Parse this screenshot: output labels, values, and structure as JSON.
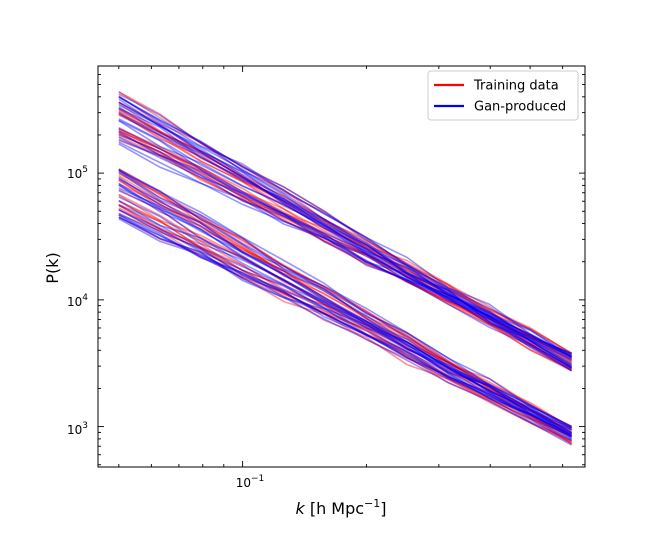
{
  "chart_data": {
    "type": "line",
    "xscale": "log",
    "yscale": "log",
    "xlim": [
      0.0445,
      0.68
    ],
    "ylim": [
      480,
      700000
    ],
    "xlabel_italic": "k",
    "xlabel_rest": " [h Mpc",
    "xlabel_sup": "−1",
    "xlabel_close": "]",
    "ylabel": "P(k)",
    "x_major_ticks": [
      {
        "value": 0.1,
        "base": "10",
        "exp": "−1"
      }
    ],
    "y_major_ticks": [
      {
        "value": 1000,
        "base": "10",
        "exp": "3"
      },
      {
        "value": 10000,
        "base": "10",
        "exp": "4"
      },
      {
        "value": 100000,
        "base": "10",
        "exp": "5"
      }
    ],
    "legend": {
      "placement": "top-right",
      "entries": [
        {
          "label": "Training data",
          "color": "#ff0000"
        },
        {
          "label": "Gan-produced",
          "color": "#0000ff"
        }
      ]
    },
    "k_values": [
      0.05,
      0.063,
      0.079,
      0.1,
      0.126,
      0.158,
      0.2,
      0.251,
      0.316,
      0.398,
      0.501,
      0.631
    ],
    "groups": [
      {
        "name": "upper",
        "start_range": [
          160000,
          450000
        ],
        "end_value": 3300
      },
      {
        "name": "lower",
        "start_range": [
          42000,
          110000
        ],
        "end_value": 850
      }
    ],
    "series": [
      {
        "name": "Training data",
        "color": "#ff0000",
        "curves_per_group": 22,
        "opacity": 0.42
      },
      {
        "name": "Gan-produced",
        "color": "#0000ff",
        "curves_per_group": 22,
        "opacity": 0.42
      }
    ]
  }
}
